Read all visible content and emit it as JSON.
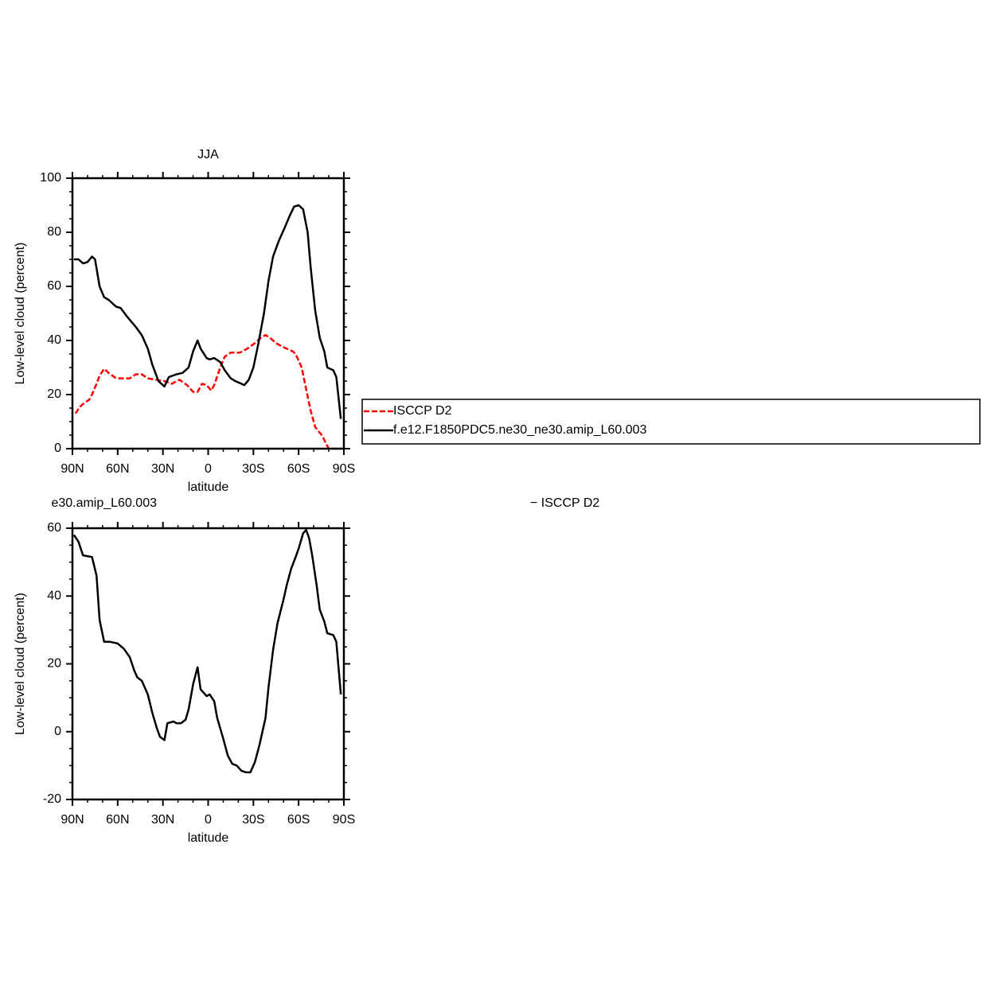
{
  "chart_data": [
    {
      "type": "line",
      "title": "JJA",
      "xlabel": "latitude",
      "ylabel": "Low-level cloud (percent)",
      "xlim": [
        90,
        -90
      ],
      "ylim": [
        0,
        100
      ],
      "xticks": [
        {
          "value": 90,
          "label": "90N"
        },
        {
          "value": 60,
          "label": "60N"
        },
        {
          "value": 30,
          "label": "30N"
        },
        0,
        {
          "value": -30,
          "label": "30S"
        },
        {
          "value": -60,
          "label": "60S"
        },
        {
          "value": -90,
          "label": "90S"
        }
      ],
      "yticks": [
        0,
        20,
        40,
        60,
        80,
        100
      ],
      "xminorticks": [
        80,
        70,
        50,
        40,
        20,
        10,
        -10,
        -20,
        -40,
        -50,
        -70,
        -80
      ],
      "yminorticks": [
        5,
        10,
        15,
        25,
        30,
        35,
        45,
        50,
        55,
        65,
        70,
        75,
        85,
        90,
        95
      ],
      "legend": "right",
      "series": [
        {
          "name": "ISCCP D2",
          "color": "#ff0000",
          "dash": "dashed",
          "x": [
            88,
            85,
            82,
            79,
            77,
            74,
            72,
            69,
            66,
            61,
            56,
            52,
            48,
            44,
            40,
            35,
            29,
            24,
            19,
            14,
            10,
            7,
            4,
            1,
            -2,
            -4,
            -8,
            -11,
            -15,
            -21,
            -26,
            -31,
            -35,
            -38,
            -41,
            -45,
            -50,
            -56,
            -58,
            -62,
            -65,
            -68,
            -71,
            -76,
            -78,
            -80,
            -86,
            -89
          ],
          "values": [
            13,
            15.5,
            17,
            18,
            20,
            24,
            27,
            29.5,
            28,
            26,
            26,
            26,
            27.5,
            27.5,
            26,
            25.5,
            25,
            24,
            25.5,
            23.5,
            21,
            21,
            24,
            23.5,
            21.5,
            23.5,
            30,
            34,
            35.5,
            35.5,
            37,
            39,
            41,
            42,
            41,
            39,
            37.5,
            36,
            35,
            30,
            22,
            14,
            8,
            4.5,
            2,
            0,
            0,
            0
          ]
        },
        {
          "name": "f.e12.F1850PDC5.ne30_ne30.amip_L60.003",
          "color": "#000000",
          "dash": "solid",
          "x": [
            89,
            86,
            83,
            80,
            77,
            75,
            72,
            69,
            66,
            61,
            58,
            54,
            48,
            44,
            40,
            37,
            33,
            29,
            26,
            21,
            17,
            13,
            10,
            7,
            5,
            1,
            -1,
            -4,
            -8,
            -11,
            -15,
            -18,
            -22,
            -24,
            -27,
            -30,
            -33,
            -37,
            -40,
            -43,
            -47,
            -51,
            -54,
            -57,
            -60,
            -63,
            -66,
            -68,
            -71,
            -74,
            -77,
            -79,
            -83,
            -85,
            -88
          ],
          "values": [
            70,
            70,
            68.5,
            69,
            71,
            70,
            60,
            56,
            55,
            52.5,
            52,
            49,
            45,
            42,
            37,
            31,
            25,
            23,
            26.5,
            27.5,
            28,
            30,
            36,
            40,
            37,
            33.5,
            33,
            33.5,
            32,
            29,
            26,
            25,
            24,
            23.5,
            25.5,
            30,
            38,
            50,
            62,
            71,
            77,
            82,
            86,
            89.5,
            90,
            88.5,
            80,
            67,
            51,
            41,
            36,
            30,
            29,
            26.5,
            11
          ]
        }
      ]
    },
    {
      "type": "line",
      "title": [
        "e30.amip_L60.003",
        "− ISCCP D2"
      ],
      "xlabel": "latitude",
      "ylabel": "Low-level cloud (percent)",
      "xlim": [
        90,
        -90
      ],
      "ylim": [
        -20,
        60
      ],
      "xticks": [
        {
          "value": 90,
          "label": "90N"
        },
        {
          "value": 60,
          "label": "60N"
        },
        {
          "value": 30,
          "label": "30N"
        },
        0,
        {
          "value": -30,
          "label": "30S"
        },
        {
          "value": -60,
          "label": "60S"
        },
        {
          "value": -90,
          "label": "90S"
        }
      ],
      "yticks": [
        -20,
        0,
        20,
        40,
        60
      ],
      "xminorticks": [
        80,
        70,
        50,
        40,
        20,
        10,
        -10,
        -20,
        -40,
        -50,
        -70,
        -80
      ],
      "yminorticks": [
        -15,
        -10,
        -5,
        5,
        10,
        15,
        25,
        30,
        35,
        45,
        50,
        55
      ],
      "series": [
        {
          "color": "#000000",
          "dash": "solid",
          "x": [
            89,
            86,
            83,
            77,
            74,
            72,
            69,
            65,
            60,
            56,
            52,
            49,
            47,
            44,
            40,
            37,
            34,
            32,
            29,
            27,
            23,
            21,
            18,
            15,
            13,
            10,
            7,
            5,
            1,
            -1,
            -4,
            -6,
            -10,
            -13,
            -16,
            -19,
            -22,
            -25,
            -28,
            -31,
            -34,
            -38,
            -40,
            -43,
            -46,
            -50,
            -52,
            -55,
            -58,
            -60,
            -63,
            -65,
            -67,
            -69,
            -72,
            -74,
            -77,
            -79,
            -83,
            -85,
            -88
          ],
          "values": [
            58,
            56,
            52,
            51.5,
            46,
            33,
            26.5,
            26.5,
            26,
            24.5,
            22,
            18,
            16,
            15,
            11,
            5.5,
            1,
            -1.5,
            -2.5,
            2.5,
            3,
            2.5,
            2.5,
            3.5,
            6.5,
            14,
            19,
            12.5,
            10.5,
            11,
            9,
            4,
            -2,
            -7,
            -9.5,
            -10,
            -11.5,
            -12,
            -12,
            -9,
            -4,
            4,
            13,
            24,
            32,
            39,
            43,
            48,
            51.5,
            54,
            58.5,
            59.5,
            57,
            52,
            43,
            36,
            32.5,
            29,
            28.5,
            26.5,
            11
          ]
        }
      ]
    }
  ]
}
